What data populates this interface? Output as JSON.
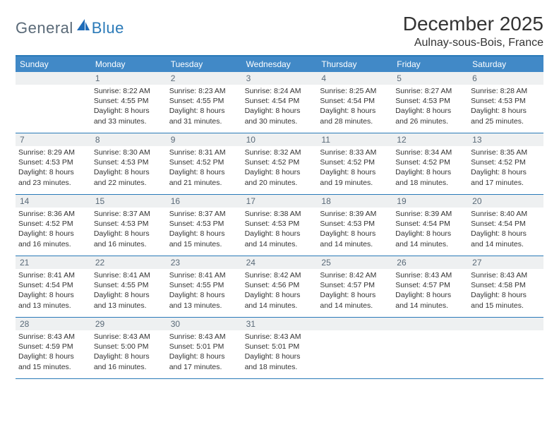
{
  "logo": {
    "text1": "General",
    "text2": "Blue"
  },
  "title": "December 2025",
  "location": "Aulnay-sous-Bois, France",
  "colors": {
    "accent": "#2a7ab8",
    "header_bg": "#4189c7",
    "daynum_bg": "#eef0f1",
    "daynum_fg": "#5a6a78",
    "text": "#333333"
  },
  "day_names": [
    "Sunday",
    "Monday",
    "Tuesday",
    "Wednesday",
    "Thursday",
    "Friday",
    "Saturday"
  ],
  "first_weekday_offset": 1,
  "days": [
    {
      "n": 1,
      "sunrise": "8:22 AM",
      "sunset": "4:55 PM",
      "dl_h": 8,
      "dl_m": 33
    },
    {
      "n": 2,
      "sunrise": "8:23 AM",
      "sunset": "4:55 PM",
      "dl_h": 8,
      "dl_m": 31
    },
    {
      "n": 3,
      "sunrise": "8:24 AM",
      "sunset": "4:54 PM",
      "dl_h": 8,
      "dl_m": 30
    },
    {
      "n": 4,
      "sunrise": "8:25 AM",
      "sunset": "4:54 PM",
      "dl_h": 8,
      "dl_m": 28
    },
    {
      "n": 5,
      "sunrise": "8:27 AM",
      "sunset": "4:53 PM",
      "dl_h": 8,
      "dl_m": 26
    },
    {
      "n": 6,
      "sunrise": "8:28 AM",
      "sunset": "4:53 PM",
      "dl_h": 8,
      "dl_m": 25
    },
    {
      "n": 7,
      "sunrise": "8:29 AM",
      "sunset": "4:53 PM",
      "dl_h": 8,
      "dl_m": 23
    },
    {
      "n": 8,
      "sunrise": "8:30 AM",
      "sunset": "4:53 PM",
      "dl_h": 8,
      "dl_m": 22
    },
    {
      "n": 9,
      "sunrise": "8:31 AM",
      "sunset": "4:52 PM",
      "dl_h": 8,
      "dl_m": 21
    },
    {
      "n": 10,
      "sunrise": "8:32 AM",
      "sunset": "4:52 PM",
      "dl_h": 8,
      "dl_m": 20
    },
    {
      "n": 11,
      "sunrise": "8:33 AM",
      "sunset": "4:52 PM",
      "dl_h": 8,
      "dl_m": 19
    },
    {
      "n": 12,
      "sunrise": "8:34 AM",
      "sunset": "4:52 PM",
      "dl_h": 8,
      "dl_m": 18
    },
    {
      "n": 13,
      "sunrise": "8:35 AM",
      "sunset": "4:52 PM",
      "dl_h": 8,
      "dl_m": 17
    },
    {
      "n": 14,
      "sunrise": "8:36 AM",
      "sunset": "4:52 PM",
      "dl_h": 8,
      "dl_m": 16
    },
    {
      "n": 15,
      "sunrise": "8:37 AM",
      "sunset": "4:53 PM",
      "dl_h": 8,
      "dl_m": 16
    },
    {
      "n": 16,
      "sunrise": "8:37 AM",
      "sunset": "4:53 PM",
      "dl_h": 8,
      "dl_m": 15
    },
    {
      "n": 17,
      "sunrise": "8:38 AM",
      "sunset": "4:53 PM",
      "dl_h": 8,
      "dl_m": 14
    },
    {
      "n": 18,
      "sunrise": "8:39 AM",
      "sunset": "4:53 PM",
      "dl_h": 8,
      "dl_m": 14
    },
    {
      "n": 19,
      "sunrise": "8:39 AM",
      "sunset": "4:54 PM",
      "dl_h": 8,
      "dl_m": 14
    },
    {
      "n": 20,
      "sunrise": "8:40 AM",
      "sunset": "4:54 PM",
      "dl_h": 8,
      "dl_m": 14
    },
    {
      "n": 21,
      "sunrise": "8:41 AM",
      "sunset": "4:54 PM",
      "dl_h": 8,
      "dl_m": 13
    },
    {
      "n": 22,
      "sunrise": "8:41 AM",
      "sunset": "4:55 PM",
      "dl_h": 8,
      "dl_m": 13
    },
    {
      "n": 23,
      "sunrise": "8:41 AM",
      "sunset": "4:55 PM",
      "dl_h": 8,
      "dl_m": 13
    },
    {
      "n": 24,
      "sunrise": "8:42 AM",
      "sunset": "4:56 PM",
      "dl_h": 8,
      "dl_m": 14
    },
    {
      "n": 25,
      "sunrise": "8:42 AM",
      "sunset": "4:57 PM",
      "dl_h": 8,
      "dl_m": 14
    },
    {
      "n": 26,
      "sunrise": "8:43 AM",
      "sunset": "4:57 PM",
      "dl_h": 8,
      "dl_m": 14
    },
    {
      "n": 27,
      "sunrise": "8:43 AM",
      "sunset": "4:58 PM",
      "dl_h": 8,
      "dl_m": 15
    },
    {
      "n": 28,
      "sunrise": "8:43 AM",
      "sunset": "4:59 PM",
      "dl_h": 8,
      "dl_m": 15
    },
    {
      "n": 29,
      "sunrise": "8:43 AM",
      "sunset": "5:00 PM",
      "dl_h": 8,
      "dl_m": 16
    },
    {
      "n": 30,
      "sunrise": "8:43 AM",
      "sunset": "5:01 PM",
      "dl_h": 8,
      "dl_m": 17
    },
    {
      "n": 31,
      "sunrise": "8:43 AM",
      "sunset": "5:01 PM",
      "dl_h": 8,
      "dl_m": 18
    }
  ],
  "labels": {
    "sunrise": "Sunrise:",
    "sunset": "Sunset:",
    "daylight": "Daylight:",
    "hours": "hours",
    "and": "and",
    "minutes": "minutes."
  }
}
